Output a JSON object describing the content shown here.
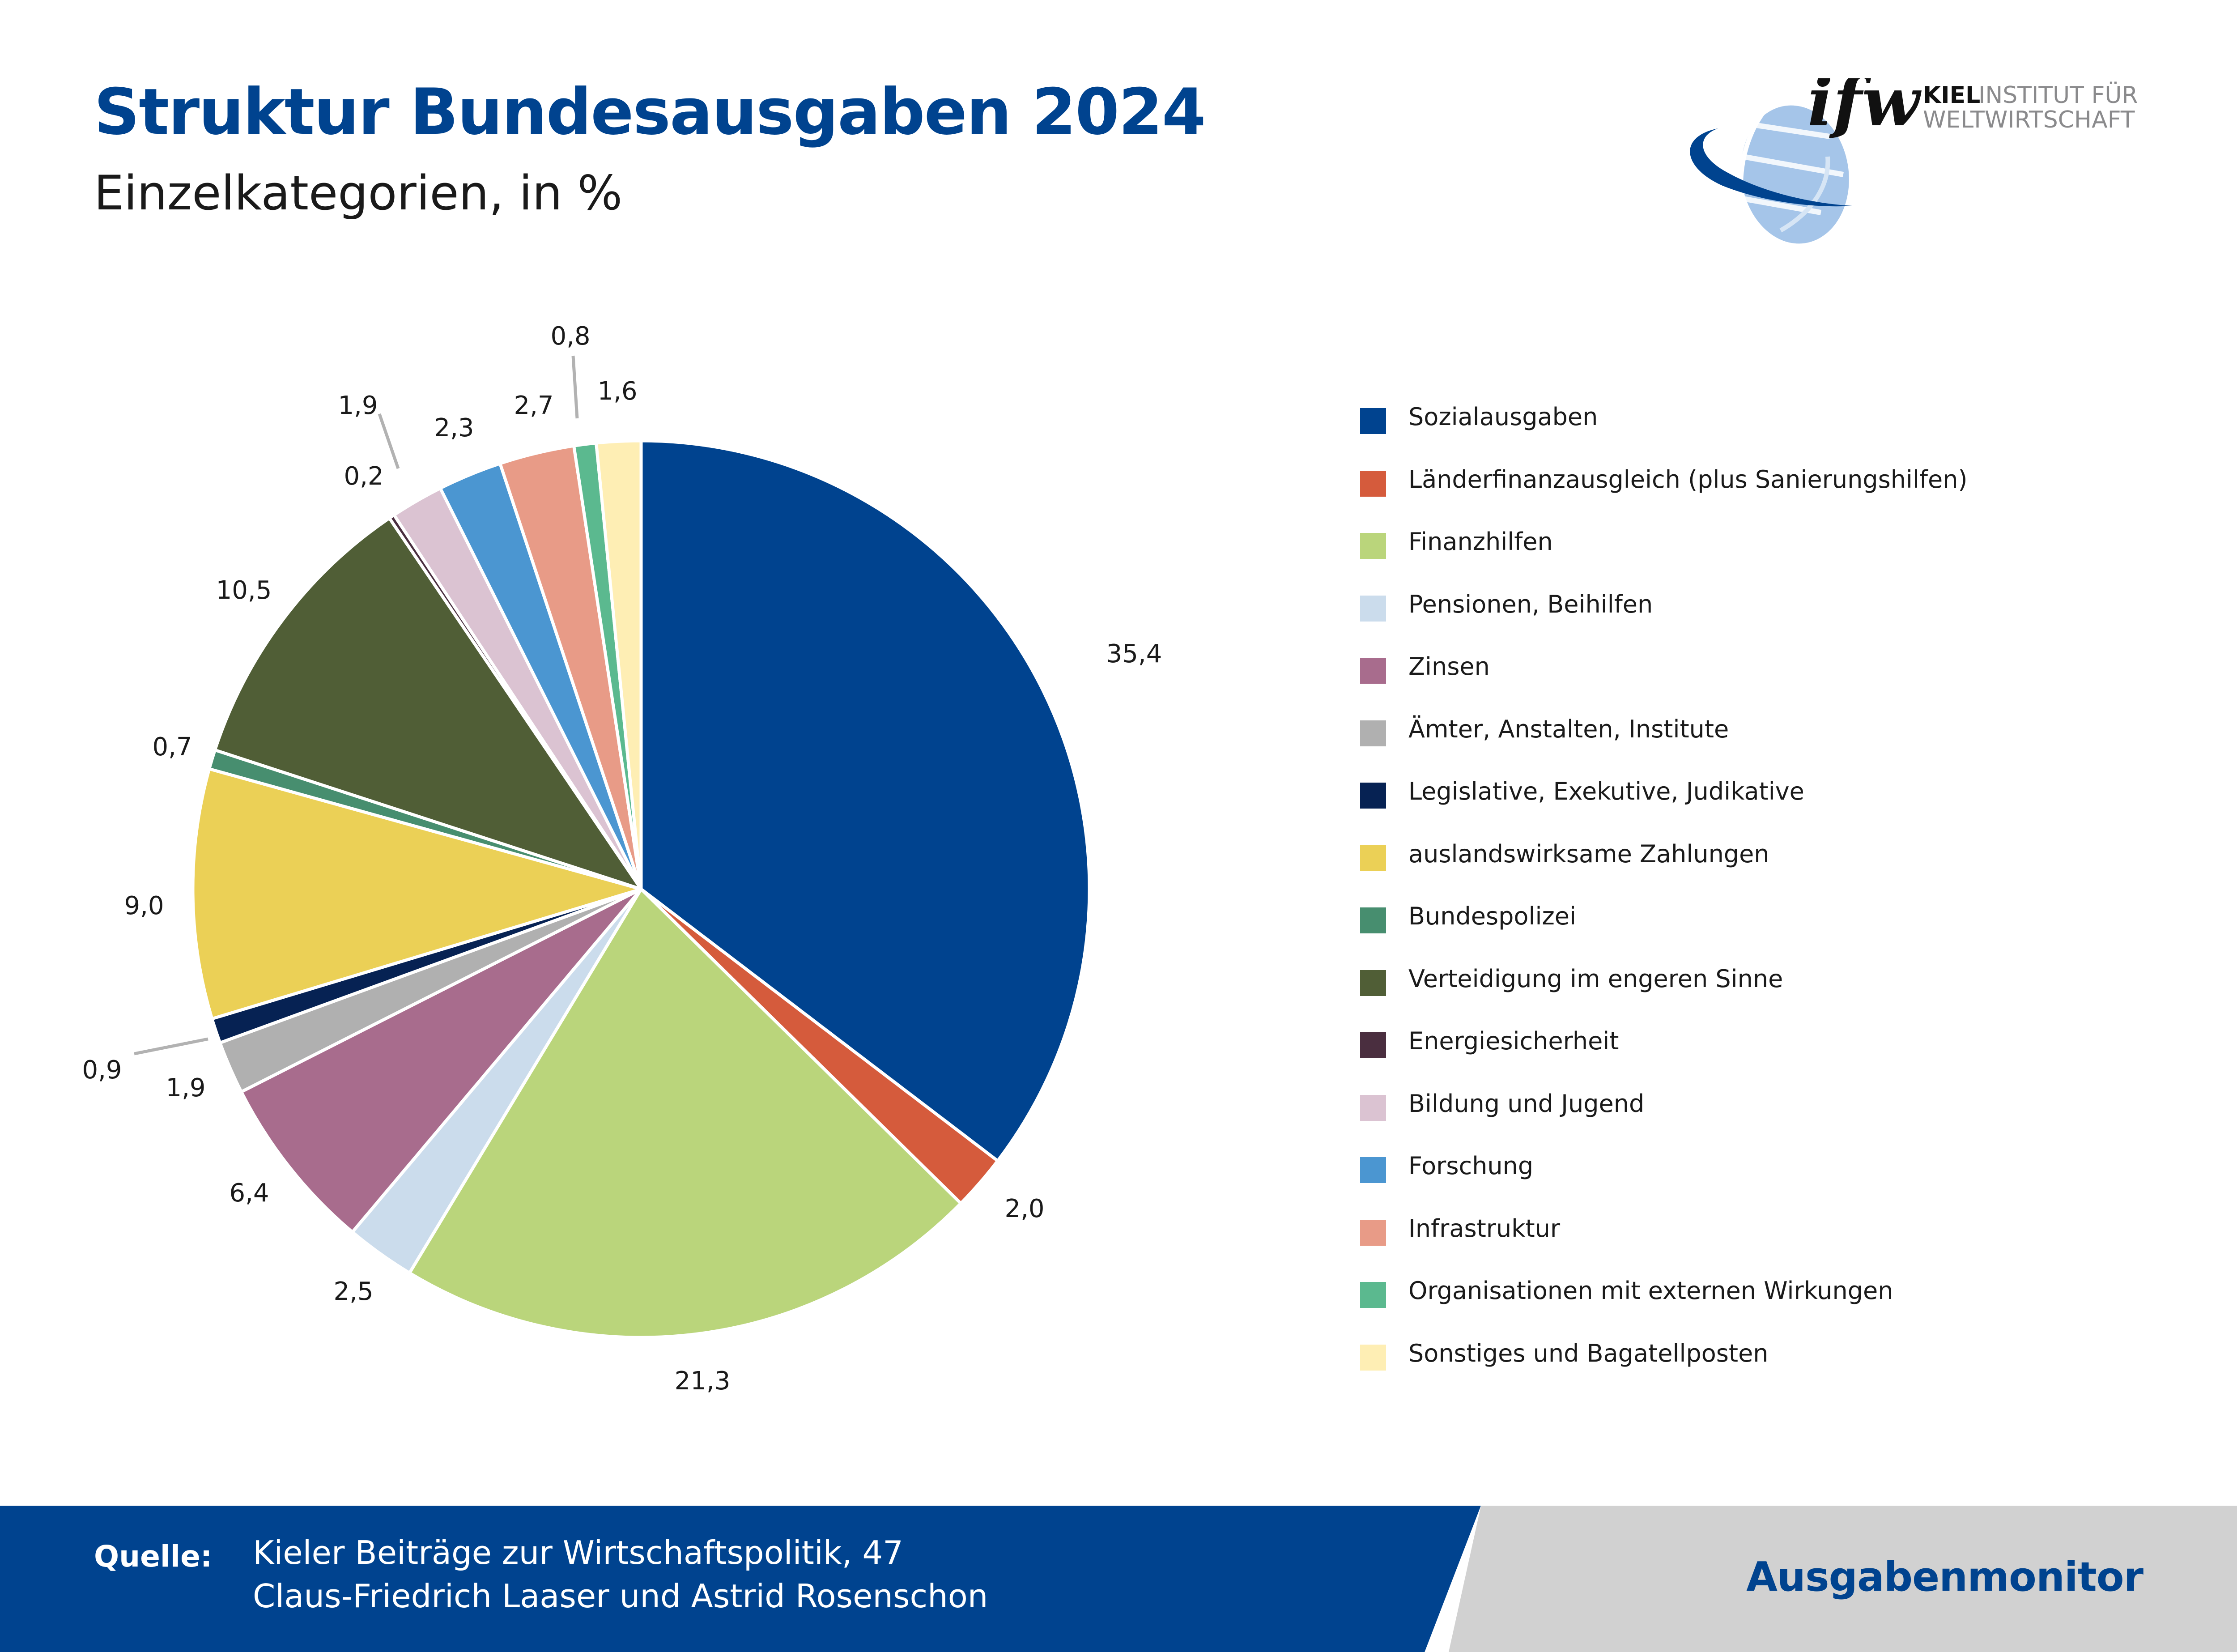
{
  "header": {
    "title": "Struktur Bundesausgaben 2024",
    "subtitle": "Einzelkategorien, in %"
  },
  "logo": {
    "mark": "ifw",
    "line1_bold": "KIEL",
    "line1_rest": "INSTITUT FÜR",
    "line2": "WELTWIRTSCHAFT",
    "globe_color": "#a5c5e9",
    "swoosh_color": "#00438f"
  },
  "chart_data": {
    "type": "pie",
    "title": "Struktur Bundesausgaben 2024",
    "subtitle": "Einzelkategorien, in %",
    "start": "12 o'clock",
    "direction": "clockwise",
    "legend_position": "right",
    "categories": [
      "Sozialausgaben",
      "Länderfinanzausgleich (plus Sanierungshilfen)",
      "Finanzhilfen",
      "Pensionen, Beihilfen",
      "Zinsen",
      "Ämter, Anstalten, Institute",
      "Legislative, Exekutive, Judikative",
      "auslandswirksame Zahlungen",
      "Bundespolizei",
      "Verteidigung im engeren Sinne",
      "Energiesicherheit",
      "Bildung und Jugend",
      "Forschung",
      "Infrastruktur",
      "Organisationen mit externen Wirkungen",
      "Sonstiges und Bagatellposten"
    ],
    "values": [
      35.4,
      2.0,
      21.3,
      2.5,
      6.4,
      1.9,
      0.9,
      9.0,
      0.7,
      10.5,
      0.2,
      1.9,
      2.3,
      2.7,
      0.8,
      1.6
    ],
    "labels": [
      "35,4",
      "2,0",
      "21,3",
      "2,5",
      "6,4",
      "1,9",
      "0,9",
      "9,0",
      "0,7",
      "10,5",
      "0,2",
      "1,9",
      "2,3",
      "2,7",
      "0,8",
      "1,6"
    ],
    "colors": [
      "#00438f",
      "#d55b3c",
      "#bad57b",
      "#cbdcec",
      "#a86c8d",
      "#b0b0b0",
      "#062253",
      "#ebd056",
      "#478e6f",
      "#505e36",
      "#4a2e3f",
      "#dbc3d2",
      "#4b96d1",
      "#e89b87",
      "#5bb98f",
      "#feeeb4"
    ],
    "leader_lines": [
      "0,9",
      "1,9",
      "0,8"
    ],
    "unit": "%"
  },
  "footer": {
    "source_label": "Quelle:",
    "source_line1": "Kieler Beiträge zur Wirtschaftspolitik, 47",
    "source_line2": "Claus-Friedrich Laaser und Astrid Rosenschon",
    "brand": "Ausgabenmonitor",
    "left_color": "#00438f",
    "right_color": "#d1d1d1"
  }
}
